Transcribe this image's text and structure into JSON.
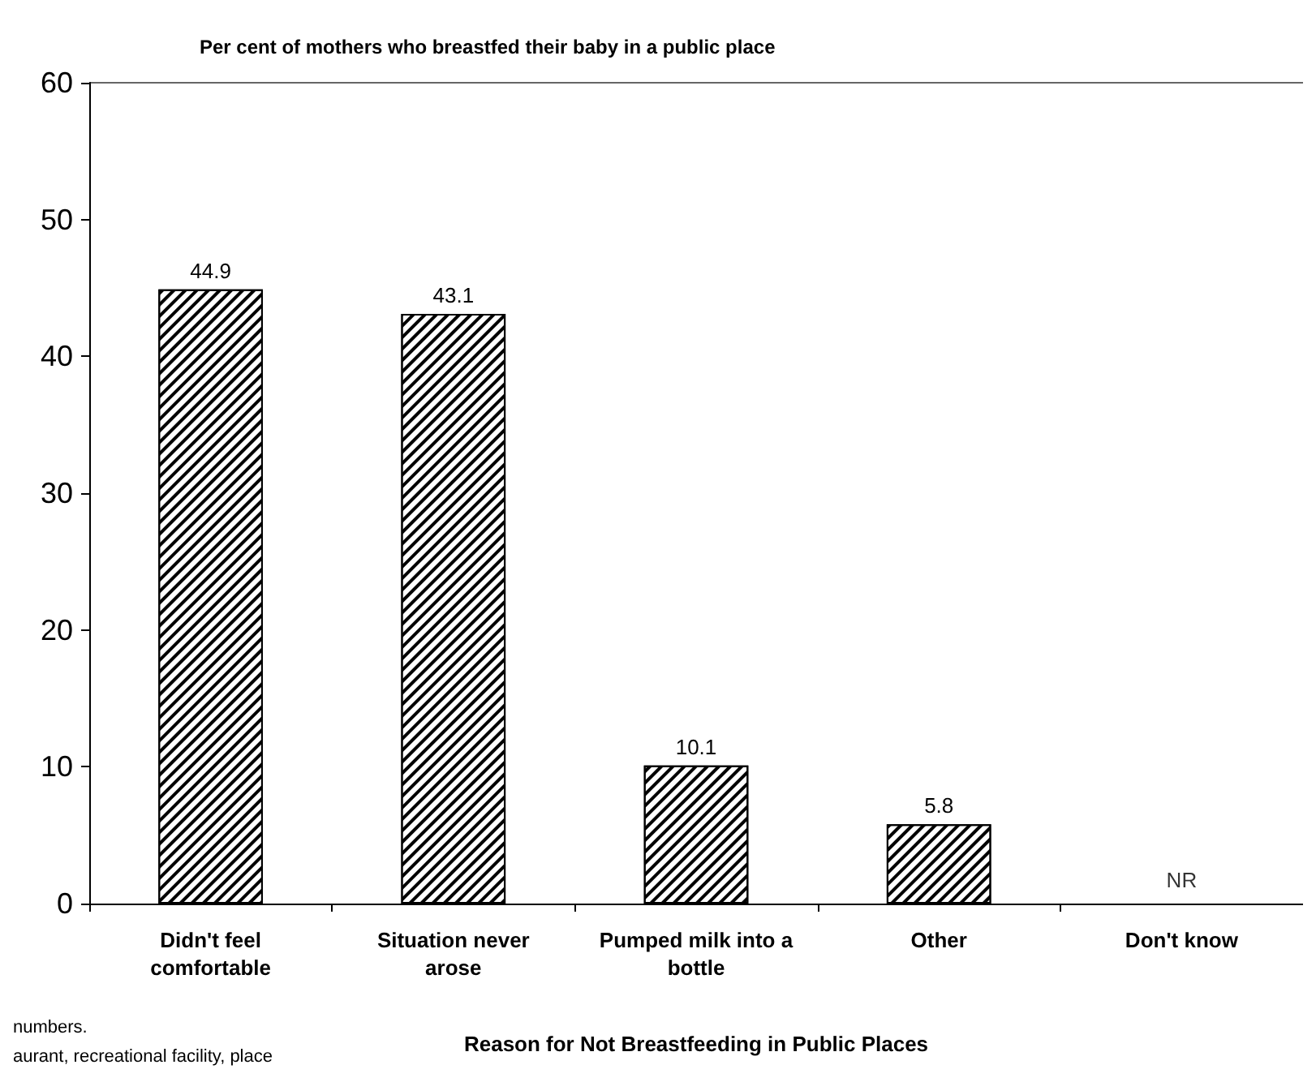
{
  "chart_data": {
    "type": "bar",
    "title": "Per cent of mothers who breastfed their baby in a public place",
    "xlabel": "Reason for Not Breastfeeding in Public Places",
    "categories": [
      "Didn't feel comfortable",
      "Situation never arose",
      "Pumped milk into a bottle",
      "Other",
      "Don't know"
    ],
    "values": [
      44.9,
      43.1,
      10.1,
      5.8,
      null
    ],
    "value_labels": [
      "44.9",
      "43.1",
      "10.1",
      "5.8",
      "NR"
    ],
    "color": "#000000",
    "ylim": [
      0,
      60
    ],
    "yticks": [
      0,
      10,
      20,
      30,
      40,
      50,
      60
    ],
    "grid": false,
    "annotations": [
      "numbers.",
      "aurant, recreational facility, place"
    ]
  }
}
